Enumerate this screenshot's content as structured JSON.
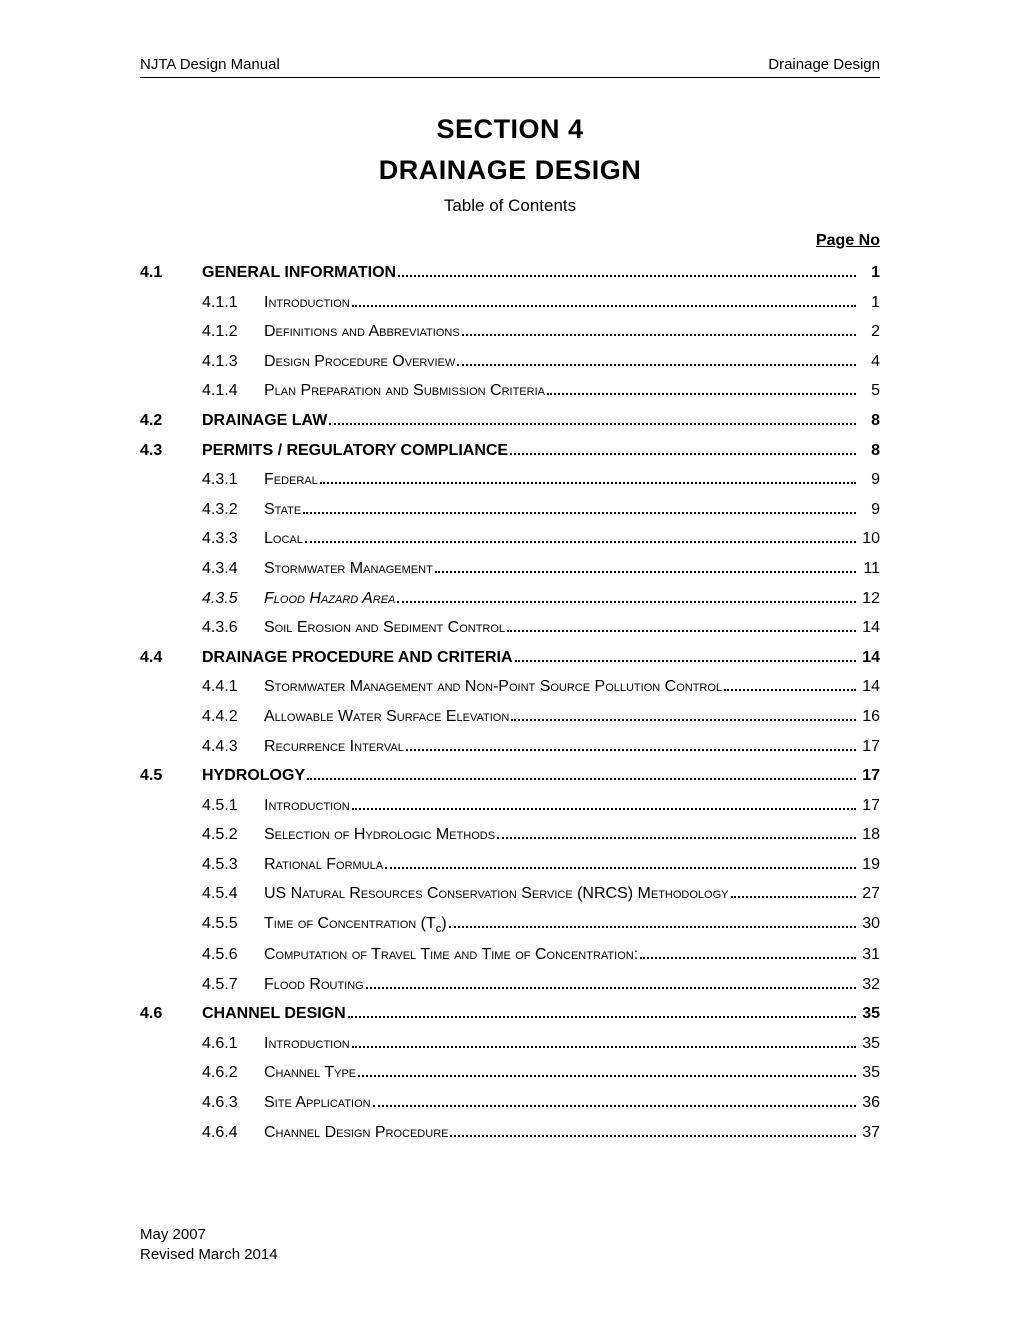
{
  "header": {
    "left": "NJTA Design Manual",
    "right": "Drainage Design"
  },
  "title": {
    "line1": "SECTION 4",
    "line2": "DRAINAGE DESIGN",
    "toc_label": "Table of Contents",
    "page_no_label": "Page No"
  },
  "toc": [
    {
      "type": "section",
      "num": "4.1",
      "title": "GENERAL INFORMATION",
      "page": "1"
    },
    {
      "type": "sub",
      "num": "4.1.1",
      "title": "Introduction",
      "page": "1"
    },
    {
      "type": "sub",
      "num": "4.1.2",
      "title": "Definitions and Abbreviations",
      "page": "2"
    },
    {
      "type": "sub",
      "num": "4.1.3",
      "title": "Design Procedure Overview",
      "page": "4"
    },
    {
      "type": "sub",
      "num": "4.1.4",
      "title": "Plan Preparation and Submission Criteria",
      "page": "5"
    },
    {
      "type": "section",
      "num": "4.2",
      "title": "DRAINAGE LAW",
      "page": "8"
    },
    {
      "type": "section",
      "num": "4.3",
      "title": "PERMITS / REGULATORY COMPLIANCE",
      "page": "8"
    },
    {
      "type": "sub",
      "num": "4.3.1",
      "title": "Federal",
      "page": "9"
    },
    {
      "type": "sub",
      "num": "4.3.2",
      "title": "State",
      "page": "9"
    },
    {
      "type": "sub",
      "num": "4.3.3",
      "title": "Local",
      "page": "10"
    },
    {
      "type": "sub",
      "num": "4.3.4",
      "title": "Stormwater Management",
      "page": "11"
    },
    {
      "type": "sub",
      "num": "4.3.5",
      "title": "Flood Hazard Area",
      "page": "12",
      "italic": true
    },
    {
      "type": "sub",
      "num": "4.3.6",
      "title": "Soil Erosion and Sediment Control",
      "page": "14"
    },
    {
      "type": "section",
      "num": "4.4",
      "title": "DRAINAGE PROCEDURE AND CRITERIA",
      "page": "14"
    },
    {
      "type": "sub",
      "num": "4.4.1",
      "title": "Stormwater Management and Non-Point Source Pollution Control",
      "page": "14"
    },
    {
      "type": "sub",
      "num": "4.4.2",
      "title": "Allowable Water Surface Elevation",
      "page": "16"
    },
    {
      "type": "sub",
      "num": "4.4.3",
      "title": "Recurrence Interval",
      "page": "17"
    },
    {
      "type": "section",
      "num": "4.5",
      "title": "HYDROLOGY",
      "page": "17"
    },
    {
      "type": "sub",
      "num": "4.5.1",
      "title": "Introduction",
      "page": "17"
    },
    {
      "type": "sub",
      "num": "4.5.2",
      "title": "Selection of Hydrologic Methods",
      "page": "18"
    },
    {
      "type": "sub",
      "num": "4.5.3",
      "title": "Rational Formula",
      "page": "19"
    },
    {
      "type": "sub",
      "num": "4.5.4",
      "title": "US Natural Resources Conservation Service (NRCS) Methodology",
      "page": "27"
    },
    {
      "type": "sub",
      "num": "4.5.5",
      "title_html": "Time of Concentration (T<sub>c</sub>)",
      "page": "30"
    },
    {
      "type": "sub",
      "num": "4.5.6",
      "title": "Computation of Travel Time and Time of Concentration:",
      "page": "31"
    },
    {
      "type": "sub",
      "num": "4.5.7",
      "title": "Flood Routing",
      "page": "32"
    },
    {
      "type": "section",
      "num": "4.6",
      "title": "CHANNEL DESIGN",
      "page": "35"
    },
    {
      "type": "sub",
      "num": "4.6.1",
      "title": "Introduction",
      "page": "35"
    },
    {
      "type": "sub",
      "num": "4.6.2",
      "title": "Channel Type",
      "page": "35"
    },
    {
      "type": "sub",
      "num": "4.6.3",
      "title": "Site Application",
      "page": "36"
    },
    {
      "type": "sub",
      "num": "4.6.4",
      "title": "Channel Design Procedure",
      "page": "37"
    }
  ],
  "footer": {
    "line1": "May 2007",
    "line2": "Revised March 2014"
  }
}
